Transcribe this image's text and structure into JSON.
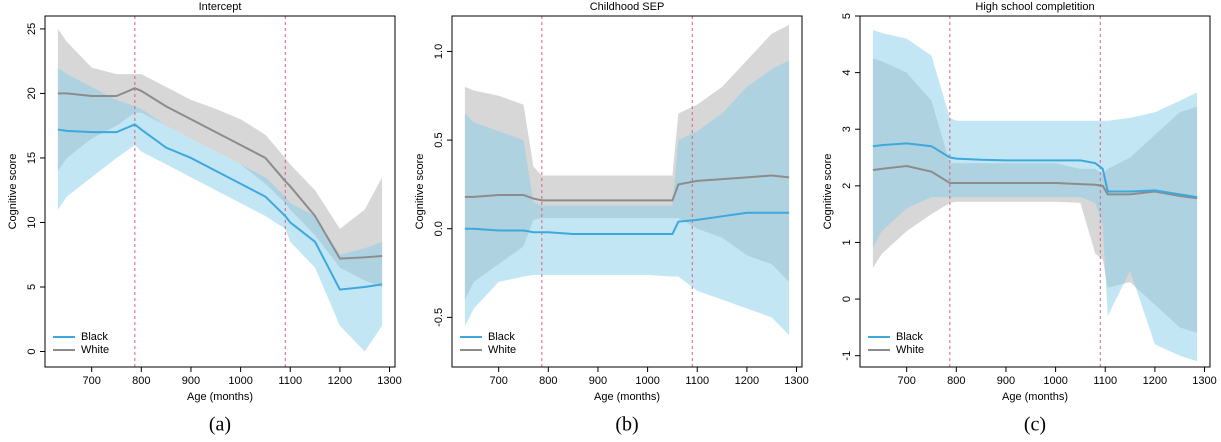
{
  "chart_data": [
    {
      "type": "line",
      "title": "Intercept",
      "caption": "(a)",
      "xlabel": "Age (months)",
      "ylabel": "Cognitive score",
      "xlim": [
        606,
        1311
      ],
      "ylim": [
        -1.2,
        26
      ],
      "xticks": [
        700,
        800,
        900,
        1000,
        1100,
        1200,
        1300
      ],
      "yticks": [
        0,
        5,
        10,
        15,
        20,
        25
      ],
      "vlines": [
        787,
        1090
      ],
      "legend": "bottom-left",
      "x": [
        632,
        650,
        700,
        750,
        787,
        800,
        850,
        900,
        950,
        1000,
        1050,
        1090,
        1100,
        1150,
        1200,
        1250,
        1285
      ],
      "series": [
        {
          "name": "Black",
          "color": "#3ea8dd",
          "band_color": "#87ceeb",
          "values": [
            17.2,
            17.1,
            17.0,
            17.0,
            17.6,
            17.2,
            15.8,
            15.0,
            14.0,
            13.0,
            12.0,
            10.5,
            10.0,
            8.5,
            4.8,
            5.0,
            5.2
          ],
          "lower": [
            11,
            12,
            13.5,
            15,
            16,
            15.5,
            14.5,
            13.5,
            12.5,
            11.5,
            10.5,
            9.5,
            8.5,
            6.5,
            2,
            0,
            2
          ],
          "upper": [
            22,
            21.5,
            20.5,
            19.5,
            19,
            18.8,
            17.5,
            16.5,
            15.5,
            14.5,
            13.5,
            12,
            11.5,
            10.5,
            7.5,
            8,
            8.5
          ]
        },
        {
          "name": "White",
          "color": "#8c8c8c",
          "band_color": "#bdbdbd",
          "values": [
            20,
            20,
            19.8,
            19.8,
            20.4,
            20.2,
            19,
            18,
            17,
            16,
            15,
            13.2,
            12.8,
            10.5,
            7.2,
            7.3,
            7.4
          ],
          "lower": [
            14,
            15,
            16.5,
            17.5,
            18.5,
            18.5,
            17.5,
            16.5,
            15.5,
            14.5,
            13,
            11.5,
            11,
            9,
            6.5,
            5.5,
            5
          ],
          "upper": [
            25,
            24,
            22,
            21.5,
            21.5,
            21.5,
            20.5,
            19.5,
            18.8,
            18,
            16.8,
            15,
            14.5,
            12.5,
            9.5,
            11,
            13.5
          ]
        }
      ]
    },
    {
      "type": "line",
      "title": "Childhood SEP",
      "caption": "(b)",
      "xlabel": "Age (months)",
      "ylabel": "Cognitive score",
      "xlim": [
        606,
        1311
      ],
      "ylim": [
        -0.78,
        1.2
      ],
      "xticks": [
        700,
        800,
        900,
        1000,
        1100,
        1200,
        1300
      ],
      "yticks": [
        -0.5,
        {
          "value": 0,
          "label": "0.0"
        },
        0.5,
        {
          "value": 1,
          "label": "1.0"
        }
      ],
      "vlines": [
        787,
        1090
      ],
      "legend": "bottom-left",
      "x": [
        632,
        650,
        700,
        750,
        770,
        787,
        800,
        850,
        900,
        950,
        1000,
        1050,
        1062,
        1100,
        1150,
        1200,
        1250,
        1285
      ],
      "series": [
        {
          "name": "Black",
          "color": "#3ea8dd",
          "band_color": "#87ceeb",
          "values": [
            0.0,
            0.0,
            -0.01,
            -0.01,
            -0.02,
            -0.02,
            -0.02,
            -0.03,
            -0.03,
            -0.03,
            -0.03,
            -0.03,
            0.04,
            0.05,
            0.07,
            0.09,
            0.09,
            0.09
          ],
          "lower": [
            -0.55,
            -0.45,
            -0.3,
            -0.27,
            -0.26,
            -0.26,
            -0.26,
            -0.26,
            -0.26,
            -0.26,
            -0.26,
            -0.27,
            -0.27,
            -0.35,
            -0.4,
            -0.45,
            -0.5,
            -0.6
          ],
          "upper": [
            0.65,
            0.6,
            0.55,
            0.5,
            0.15,
            0.13,
            0.13,
            0.13,
            0.13,
            0.13,
            0.13,
            0.13,
            0.5,
            0.55,
            0.65,
            0.8,
            0.9,
            0.95
          ]
        },
        {
          "name": "White",
          "color": "#8c8c8c",
          "band_color": "#bdbdbd",
          "values": [
            0.18,
            0.18,
            0.19,
            0.19,
            0.17,
            0.16,
            0.16,
            0.16,
            0.16,
            0.16,
            0.16,
            0.16,
            0.25,
            0.27,
            0.28,
            0.29,
            0.3,
            0.29
          ],
          "lower": [
            -0.4,
            -0.3,
            -0.2,
            -0.1,
            0.05,
            0.06,
            0.06,
            0.06,
            0.06,
            0.06,
            0.06,
            0.06,
            0.06,
            0.0,
            -0.05,
            -0.15,
            -0.2,
            -0.3
          ],
          "upper": [
            0.8,
            0.78,
            0.75,
            0.7,
            0.35,
            0.3,
            0.3,
            0.3,
            0.3,
            0.3,
            0.3,
            0.3,
            0.65,
            0.7,
            0.8,
            0.95,
            1.1,
            1.15
          ]
        }
      ]
    },
    {
      "type": "line",
      "title": "High school completition",
      "caption": "(c)",
      "xlabel": "Age (months)",
      "ylabel": "Cognitive score",
      "xlim": [
        606,
        1311
      ],
      "ylim": [
        -1.2,
        5
      ],
      "xticks": [
        700,
        800,
        900,
        1000,
        1100,
        1200,
        1300
      ],
      "yticks": [
        -1,
        0,
        1,
        2,
        3,
        4,
        5
      ],
      "vlines": [
        787,
        1090
      ],
      "legend": "bottom-left",
      "x": [
        632,
        650,
        700,
        750,
        787,
        800,
        850,
        900,
        950,
        1000,
        1050,
        1080,
        1095,
        1105,
        1150,
        1200,
        1250,
        1285
      ],
      "series": [
        {
          "name": "Black",
          "color": "#3ea8dd",
          "band_color": "#87ceeb",
          "values": [
            2.7,
            2.72,
            2.75,
            2.7,
            2.5,
            2.48,
            2.46,
            2.45,
            2.45,
            2.45,
            2.45,
            2.4,
            2.3,
            1.9,
            1.9,
            1.92,
            1.85,
            1.8
          ],
          "lower": [
            0.9,
            1.2,
            1.6,
            1.8,
            1.8,
            1.8,
            1.8,
            1.8,
            1.8,
            1.8,
            1.8,
            1.7,
            1.3,
            -0.3,
            0.5,
            -0.8,
            -1.0,
            -1.1
          ],
          "upper": [
            4.75,
            4.7,
            4.6,
            4.3,
            3.2,
            3.15,
            3.15,
            3.15,
            3.15,
            3.15,
            3.15,
            3.15,
            3.15,
            3.15,
            3.2,
            3.3,
            3.5,
            3.65
          ]
        },
        {
          "name": "White",
          "color": "#8c8c8c",
          "band_color": "#bdbdbd",
          "values": [
            2.28,
            2.3,
            2.35,
            2.25,
            2.05,
            2.05,
            2.05,
            2.05,
            2.05,
            2.05,
            2.03,
            2.02,
            2.0,
            1.85,
            1.85,
            1.9,
            1.82,
            1.78
          ],
          "lower": [
            0.55,
            0.8,
            1.2,
            1.5,
            1.7,
            1.72,
            1.72,
            1.72,
            1.72,
            1.72,
            1.7,
            0.8,
            0.7,
            0.2,
            0.3,
            -0.1,
            -0.5,
            -0.6
          ],
          "upper": [
            4.25,
            4.2,
            4.0,
            3.5,
            2.4,
            2.4,
            2.4,
            2.4,
            2.4,
            2.4,
            2.3,
            2.3,
            2.2,
            2.3,
            2.5,
            2.9,
            3.3,
            3.4
          ]
        }
      ]
    }
  ]
}
